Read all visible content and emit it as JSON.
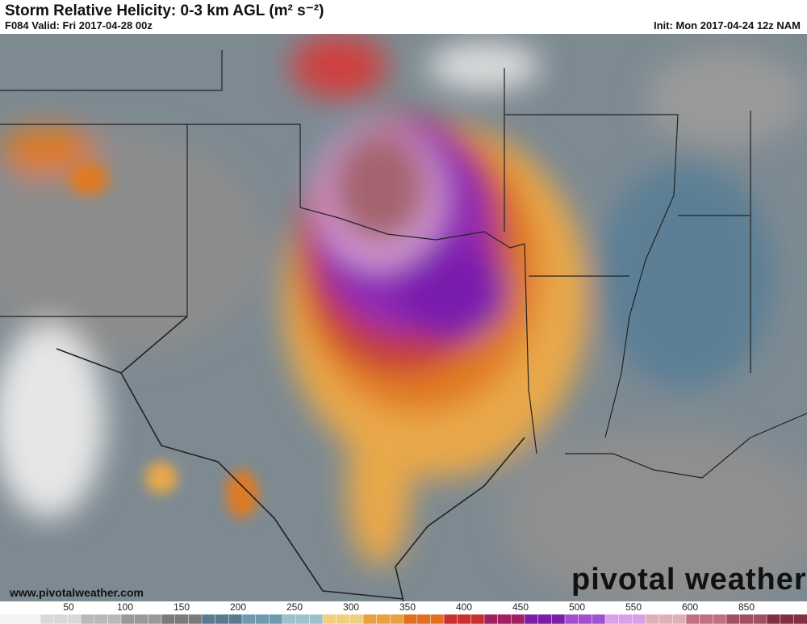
{
  "header": {
    "title": "Storm Relative Helicity: 0-3 km AGL (m² s⁻²)",
    "valid": "F084 Valid: Fri 2017-04-28 00z",
    "init": "Init: Mon 2017-04-24 12z NAM"
  },
  "map": {
    "website": "www.pivotalweather.com",
    "logo": "pivotal weather"
  },
  "legend": {
    "labels": [
      "50",
      "100",
      "150",
      "200",
      "250",
      "300",
      "350",
      "400",
      "450",
      "500",
      "550",
      "600",
      "850"
    ]
  }
}
